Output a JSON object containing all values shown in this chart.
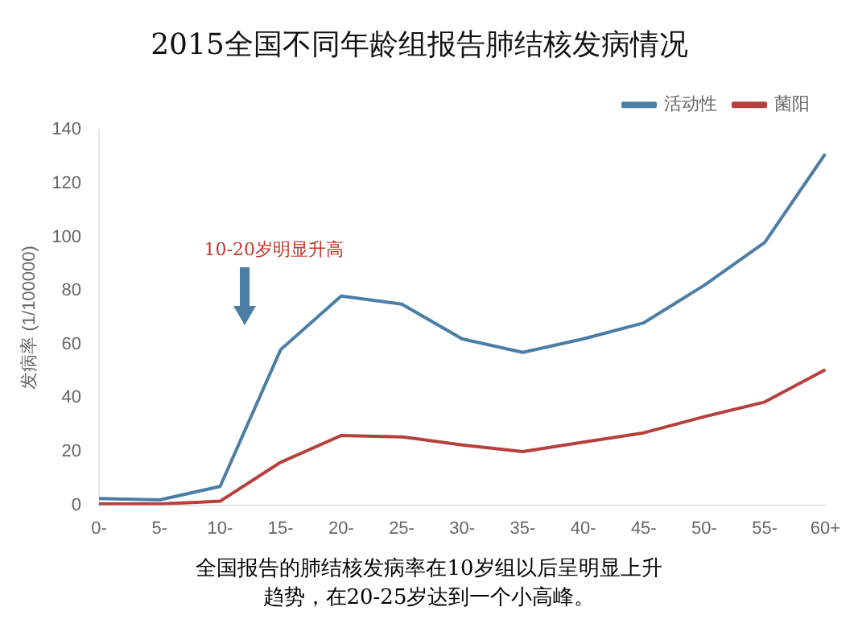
{
  "chart_data": {
    "type": "line",
    "title": "2015全国不同年龄组报告肺结核发病情况",
    "ylabel": "发病率 (1/100000)",
    "categories": [
      "0-",
      "5-",
      "10-",
      "15-",
      "20-",
      "25-",
      "30-",
      "35-",
      "40-",
      "45-",
      "50-",
      "55-",
      "60+"
    ],
    "series": [
      {
        "name": "活动性",
        "color": "#4a7ea6",
        "values": [
          2.5,
          2,
          7,
          58,
          78,
          75,
          62,
          57,
          62,
          68,
          82,
          98,
          131
        ]
      },
      {
        "name": "菌阳",
        "color": "#b5403c",
        "values": [
          0.5,
          0.5,
          1.5,
          16,
          26,
          25.5,
          22.5,
          20,
          23.5,
          27,
          33,
          38.5,
          50.5
        ]
      }
    ],
    "ylim": [
      0,
      140
    ],
    "yticks": [
      0,
      20,
      40,
      60,
      80,
      100,
      120,
      140
    ],
    "grid": false,
    "legend": "top right",
    "marker": "none",
    "annotations": [
      "10-20岁明显升高",
      "全国报告的肺结核发病率在10岁组以后呈明显上升趋势，在20-25岁达到一个小高峰。"
    ]
  }
}
